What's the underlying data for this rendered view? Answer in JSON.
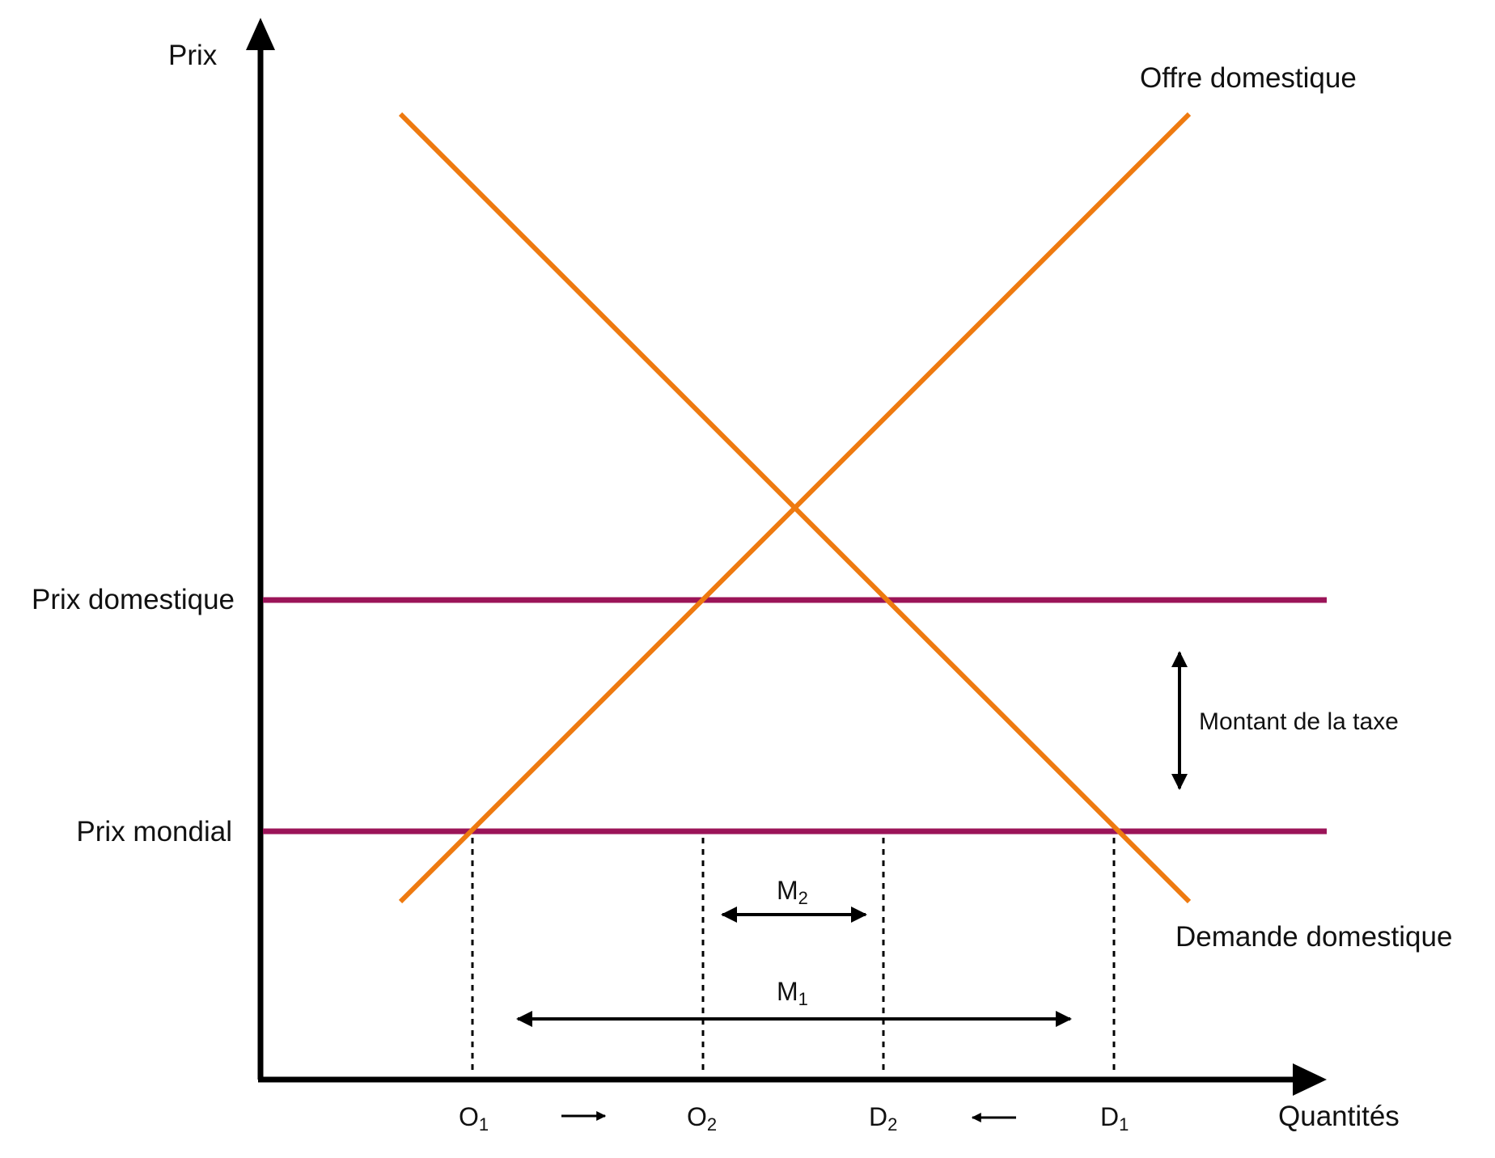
{
  "axes": {
    "y_label": "Prix",
    "x_label": "Quantités"
  },
  "curves": {
    "supply_label": "Offre domestique",
    "demand_label": "Demande domestique",
    "curve_color": "#ee7a10"
  },
  "price_levels": {
    "domestic_label": "Prix domestique",
    "world_label": "Prix mondial",
    "line_color": "#9b1458"
  },
  "tax": {
    "label": "Montant de la taxe"
  },
  "quantities": [
    {
      "letter": "O",
      "index": "1"
    },
    {
      "letter": "O",
      "index": "2"
    },
    {
      "letter": "D",
      "index": "2"
    },
    {
      "letter": "D",
      "index": "1"
    }
  ],
  "imports": {
    "m2": {
      "letter": "M",
      "index": "2"
    },
    "m1": {
      "letter": "M",
      "index": "1"
    }
  },
  "shift_arrows": [
    "right-arrow",
    "left-arrow"
  ]
}
